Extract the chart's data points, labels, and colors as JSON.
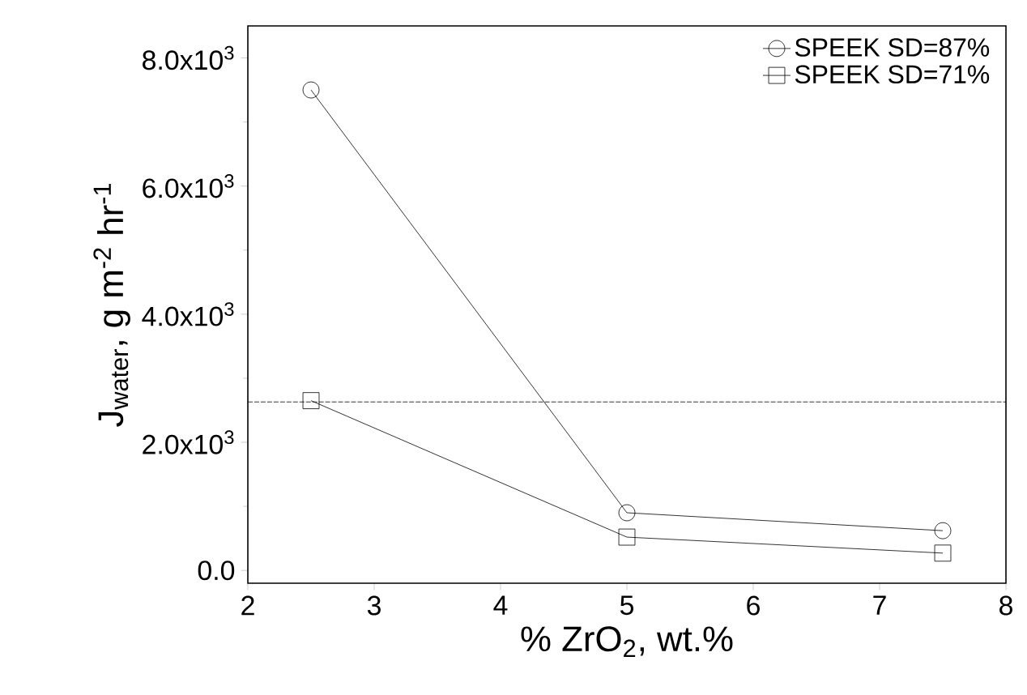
{
  "chart_data": {
    "type": "line",
    "xlabel": "% ZrO$_{2}$, wt.%",
    "ylabel": "J$_{water}$, g m$^{-2}$ hr$^{-1}$",
    "x": [
      2.5,
      5,
      7.5
    ],
    "series": [
      {
        "name": "SPEEK SD=87%",
        "color": "#000000",
        "marker": "circle",
        "values": [
          7500,
          900,
          620
        ]
      },
      {
        "name": "SPEEK SD=71%",
        "color": "#000000",
        "marker": "square",
        "values": [
          2650,
          520,
          270
        ]
      }
    ],
    "xlim": [
      2,
      8
    ],
    "xticks": [
      2,
      3,
      4,
      5,
      6,
      7,
      8
    ],
    "ylim": [
      -200,
      8500
    ],
    "yticks": [
      {
        "value": 0,
        "label": "0.0"
      },
      {
        "value": 2000,
        "label": "2.0x10$^{3}$"
      },
      {
        "value": 4000,
        "label": "4.0x10$^{3}$"
      },
      {
        "value": 6000,
        "label": "6.0x10$^{3}$"
      },
      {
        "value": 8000,
        "label": "8.0x10$^{3}$"
      }
    ],
    "ref_lines": [
      {
        "axis": "y",
        "value": 2630,
        "color": "#000000",
        "line_style": "dashed"
      }
    ],
    "legend": "top right",
    "grid": false
  }
}
